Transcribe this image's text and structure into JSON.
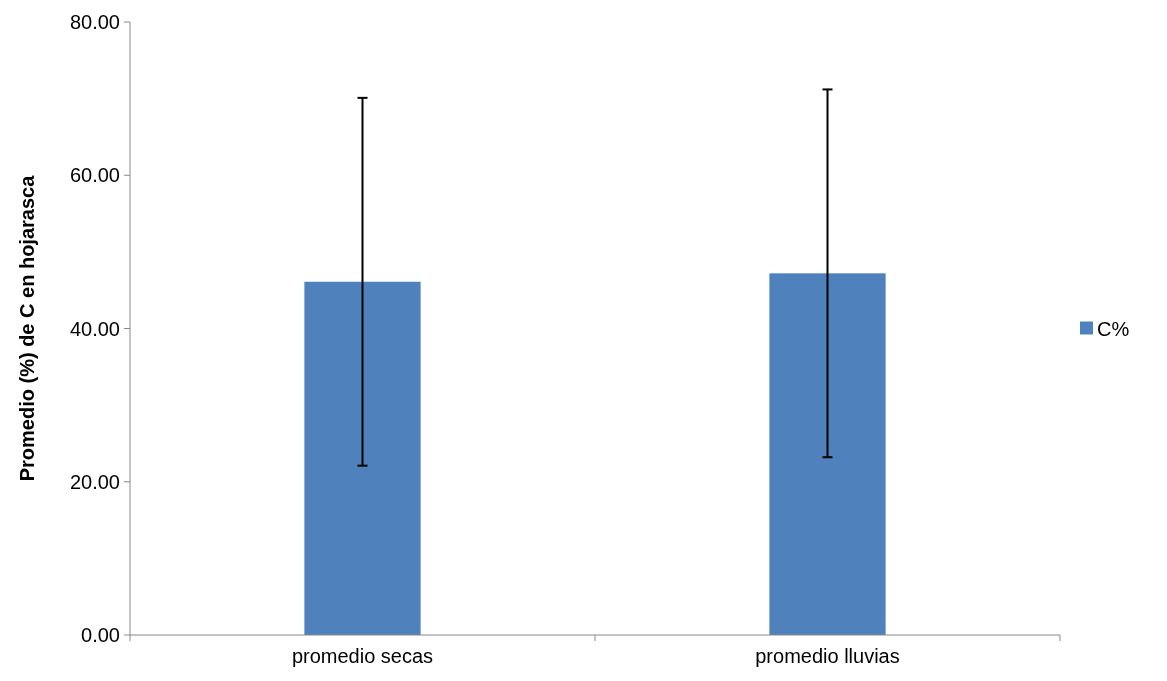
{
  "chart_data": {
    "type": "bar",
    "ylabel": "Promedio (%)  de C en hojarasca",
    "categories": [
      "promedio secas",
      "promedio lluvias"
    ],
    "series": [
      {
        "name": "C%",
        "color": "#4f81bd",
        "values": [
          46.1,
          47.2
        ],
        "errors": [
          24,
          24
        ]
      }
    ],
    "ylim": [
      0,
      80
    ],
    "yticks": [
      {
        "value": 0,
        "label": "0.00"
      },
      {
        "value": 20,
        "label": "20.00"
      },
      {
        "value": 40,
        "label": "40.00"
      },
      {
        "value": 60,
        "label": "60.00"
      },
      {
        "value": 80,
        "label": "80.00"
      }
    ],
    "grid": false,
    "legend": "right"
  }
}
